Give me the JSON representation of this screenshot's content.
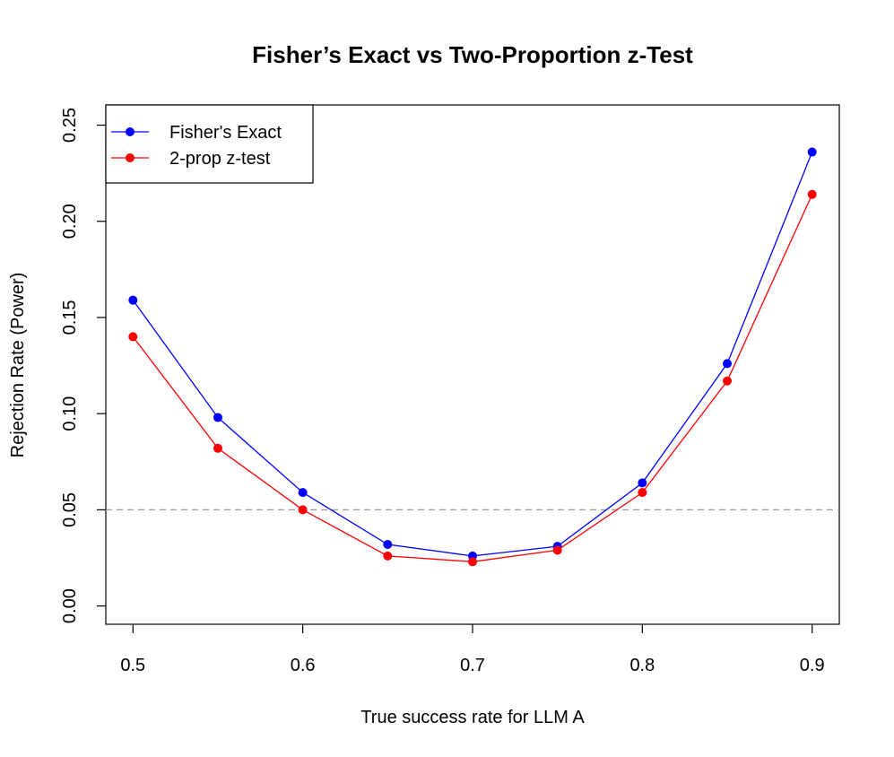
{
  "chart_data": {
    "type": "line",
    "title": "Fisher’s Exact vs Two-Proportion z-Test",
    "xlabel": "True success rate for LLM A",
    "ylabel": "Rejection Rate (Power)",
    "x": [
      0.5,
      0.55,
      0.6,
      0.65,
      0.7,
      0.75,
      0.8,
      0.85,
      0.9
    ],
    "xlim": [
      0.484,
      0.916
    ],
    "ylim": [
      -0.0095,
      0.2605
    ],
    "x_ticks": [
      "0.5",
      "0.6",
      "0.7",
      "0.8",
      "0.9"
    ],
    "y_ticks": [
      "0.00",
      "0.05",
      "0.10",
      "0.15",
      "0.20",
      "0.25"
    ],
    "series": [
      {
        "name": "Fisher's Exact",
        "color": "#0000ff",
        "values": [
          0.159,
          0.098,
          0.059,
          0.032,
          0.026,
          0.031,
          0.064,
          0.126,
          0.236
        ]
      },
      {
        "name": "2-prop z-test",
        "color": "#ff0000",
        "values": [
          0.14,
          0.082,
          0.05,
          0.026,
          0.023,
          0.029,
          0.059,
          0.117,
          0.214
        ]
      }
    ],
    "reference_line": {
      "y": 0.05,
      "color": "#999999",
      "style": "dashed"
    },
    "legend": "top-left",
    "grid": false
  }
}
